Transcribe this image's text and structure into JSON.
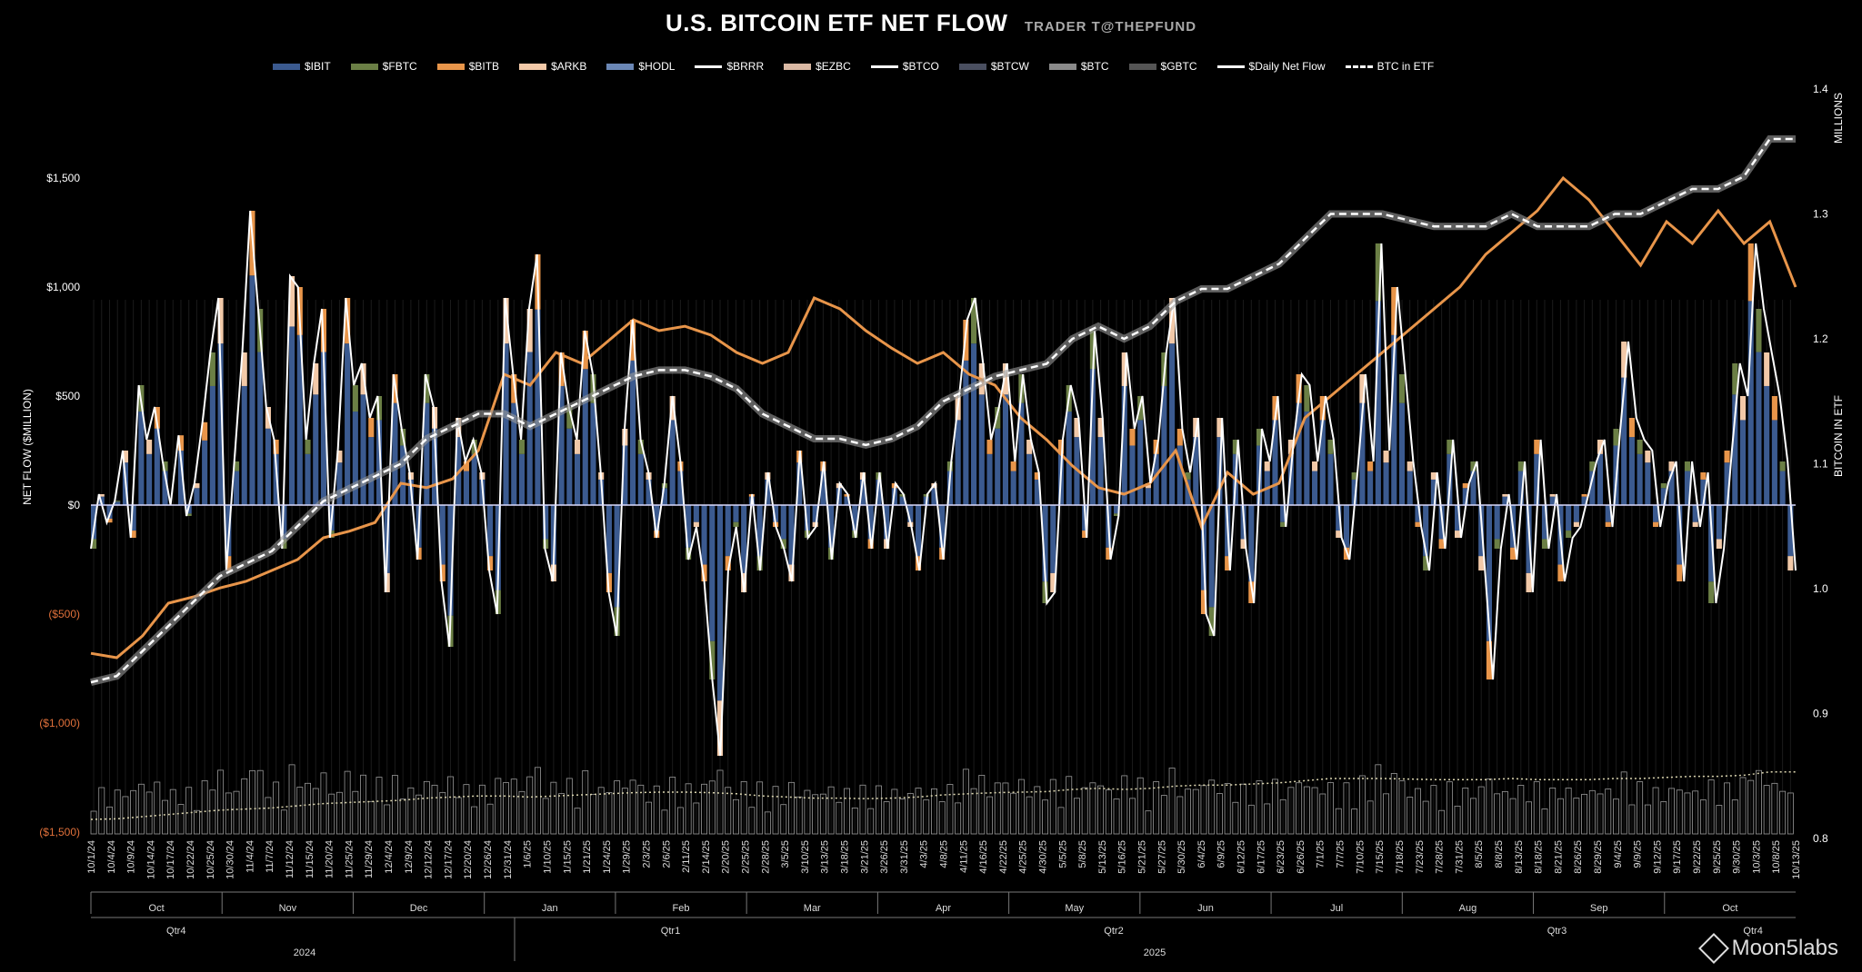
{
  "title": "U.S. BITCOIN ETF NET FLOW",
  "subtitle": "TRADER T@THEPFUND",
  "watermark": "Moon5labs",
  "legend": [
    {
      "label": "$IBIT",
      "color": "#3b5a8f",
      "kind": "bar"
    },
    {
      "label": "$FBTC",
      "color": "#6b7f45",
      "kind": "bar"
    },
    {
      "label": "$BITB",
      "color": "#e8954a",
      "kind": "bar"
    },
    {
      "label": "$ARKB",
      "color": "#f2c9a8",
      "kind": "bar"
    },
    {
      "label": "$HODL",
      "color": "#6b87b5",
      "kind": "bar"
    },
    {
      "label": "$BRRR",
      "color": "#ffffff",
      "kind": "line"
    },
    {
      "label": "$EZBC",
      "color": "#d9b8a3",
      "kind": "bar"
    },
    {
      "label": "$BTCO",
      "color": "#ffffff",
      "kind": "line"
    },
    {
      "label": "$BTCW",
      "color": "#4a4f60",
      "kind": "bar"
    },
    {
      "label": "$BTC",
      "color": "#8a8a8a",
      "kind": "bar"
    },
    {
      "label": "$GBTC",
      "color": "#555555",
      "kind": "bar"
    },
    {
      "label": "$Daily Net Flow",
      "color": "#ffffff",
      "kind": "line"
    },
    {
      "label": "BTC in ETF",
      "color": "#ffffff",
      "kind": "dash"
    }
  ],
  "chart_data": {
    "type": "bar",
    "title": "U.S. BITCOIN ETF NET FLOW",
    "ylabel_left": "NET FLOW ($MILLION)",
    "ylabel_right": "BITCOIN IN ETF",
    "right_unit": "MILLIONS",
    "left_ticks": [
      "$1,500",
      "$1,000",
      "$500",
      "$0",
      "($500)",
      "($1,000)",
      "($1,500)"
    ],
    "left_tick_values": [
      1500,
      1000,
      500,
      0,
      -500,
      -1000,
      -1500
    ],
    "right_ticks": [
      "1.4",
      "1.3",
      "1.2",
      "1.1",
      "1.0",
      "0.9",
      "0.8"
    ],
    "right_tick_values": [
      1.4,
      1.3,
      1.2,
      1.1,
      1.0,
      0.9,
      0.8
    ],
    "ylim_left": [
      -1500,
      1500
    ],
    "ylim_right": [
      0.8,
      1.4
    ],
    "date_labels": [
      "10/1/24",
      "10/4/24",
      "10/9/24",
      "10/14/24",
      "10/17/24",
      "10/22/24",
      "10/25/24",
      "10/30/24",
      "11/4/24",
      "11/7/24",
      "11/12/24",
      "11/15/24",
      "11/20/24",
      "11/25/24",
      "11/29/24",
      "12/4/24",
      "12/9/24",
      "12/12/24",
      "12/17/24",
      "12/20/24",
      "12/26/24",
      "12/31/24",
      "1/6/25",
      "1/10/25",
      "1/15/25",
      "1/21/25",
      "1/24/25",
      "1/29/25",
      "2/3/25",
      "2/6/25",
      "2/11/25",
      "2/14/25",
      "2/20/25",
      "2/25/25",
      "2/28/25",
      "3/5/25",
      "3/10/25",
      "3/13/25",
      "3/18/25",
      "3/21/25",
      "3/26/25",
      "3/31/25",
      "4/3/25",
      "4/8/25",
      "4/11/25",
      "4/16/25",
      "4/22/25",
      "4/25/25",
      "4/30/25",
      "5/5/25",
      "5/8/25",
      "5/13/25",
      "5/16/25",
      "5/21/25",
      "5/27/25",
      "5/30/25",
      "6/4/25",
      "6/9/25",
      "6/12/25",
      "6/17/25",
      "6/23/25",
      "6/26/25",
      "7/1/25",
      "7/7/25",
      "7/10/25",
      "7/15/25",
      "7/18/25",
      "7/23/25",
      "7/28/25",
      "7/31/25",
      "8/5/25",
      "8/8/25",
      "8/13/25",
      "8/18/25",
      "8/21/25",
      "8/26/25",
      "8/29/25",
      "9/4/25",
      "9/9/25",
      "9/12/25",
      "9/17/25",
      "9/22/25",
      "9/25/25",
      "9/30/25",
      "10/3/25",
      "10/8/25",
      "10/13/25"
    ],
    "months": [
      "Oct",
      "Nov",
      "Dec",
      "Jan",
      "Feb",
      "Mar",
      "Apr",
      "May",
      "Jun",
      "Jul",
      "Aug",
      "Sep",
      "Oct"
    ],
    "quarters": [
      "Qtr4",
      "Qtr1",
      "Qtr2",
      "Qtr3",
      "Qtr4"
    ],
    "years": [
      "2024",
      "2025"
    ],
    "daily_net_flow": [
      -200,
      50,
      -80,
      20,
      250,
      -150,
      550,
      300,
      450,
      200,
      0,
      320,
      -50,
      100,
      380,
      700,
      950,
      -300,
      200,
      700,
      1350,
      900,
      450,
      300,
      -200,
      1050,
      1000,
      300,
      650,
      900,
      -150,
      250,
      950,
      550,
      650,
      400,
      500,
      -400,
      600,
      350,
      150,
      -250,
      600,
      450,
      -350,
      -650,
      400,
      200,
      300,
      150,
      -300,
      -500,
      950,
      600,
      300,
      900,
      1150,
      -200,
      -350,
      700,
      450,
      300,
      800,
      600,
      150,
      -400,
      -600,
      350,
      850,
      300,
      150,
      -150,
      100,
      500,
      200,
      -250,
      -100,
      -350,
      -800,
      -1150,
      -300,
      -100,
      -400,
      50,
      -300,
      150,
      -100,
      -200,
      -350,
      250,
      -150,
      -100,
      200,
      -250,
      100,
      50,
      -150,
      150,
      -200,
      150,
      -200,
      100,
      50,
      -100,
      -300,
      50,
      100,
      -250,
      200,
      500,
      850,
      950,
      650,
      300,
      450,
      650,
      200,
      600,
      300,
      150,
      -450,
      -400,
      300,
      550,
      400,
      -150,
      800,
      400,
      -250,
      -50,
      700,
      350,
      500,
      100,
      300,
      700,
      950,
      350,
      150,
      400,
      -500,
      -600,
      400,
      -300,
      300,
      -200,
      -450,
      350,
      200,
      500,
      -100,
      300,
      600,
      550,
      200,
      500,
      300,
      -150,
      -250,
      150,
      600,
      200,
      1200,
      250,
      1000,
      600,
      200,
      -100,
      -300,
      150,
      -200,
      300,
      -150,
      100,
      200,
      -300,
      -800,
      -200,
      50,
      -250,
      200,
      -400,
      300,
      -200,
      50,
      -350,
      -150,
      -100,
      50,
      200,
      300,
      -100,
      350,
      750,
      400,
      300,
      250,
      -100,
      100,
      200,
      -350,
      200,
      -100,
      150,
      -450,
      -200,
      250,
      650,
      500,
      1200,
      900,
      700,
      500,
      200,
      -300
    ],
    "btc_in_etf": [
      0.925,
      0.93,
      0.95,
      0.97,
      0.99,
      1.01,
      1.02,
      1.03,
      1.05,
      1.07,
      1.08,
      1.09,
      1.1,
      1.12,
      1.13,
      1.14,
      1.14,
      1.13,
      1.14,
      1.15,
      1.16,
      1.17,
      1.175,
      1.175,
      1.17,
      1.16,
      1.14,
      1.13,
      1.12,
      1.12,
      1.115,
      1.12,
      1.13,
      1.15,
      1.16,
      1.17,
      1.175,
      1.18,
      1.2,
      1.21,
      1.2,
      1.21,
      1.23,
      1.24,
      1.24,
      1.25,
      1.26,
      1.28,
      1.3,
      1.3,
      1.3,
      1.295,
      1.29,
      1.29,
      1.29,
      1.3,
      1.29,
      1.29,
      1.29,
      1.3,
      1.3,
      1.31,
      1.32,
      1.32,
      1.33,
      1.36,
      1.36
    ],
    "btc_price": [
      -680,
      -700,
      -600,
      -450,
      -420,
      -380,
      -350,
      -300,
      -250,
      -150,
      -120,
      -80,
      100,
      80,
      120,
      250,
      600,
      550,
      700,
      650,
      750,
      850,
      800,
      820,
      780,
      700,
      650,
      700,
      950,
      900,
      800,
      720,
      650,
      700,
      600,
      550,
      400,
      300,
      180,
      80,
      50,
      100,
      250,
      -100,
      150,
      50,
      100,
      400,
      500,
      600,
      700,
      800,
      900,
      1000,
      1150,
      1250,
      1350,
      1500,
      1400,
      1250,
      1100,
      1300,
      1200,
      1350,
      1200,
      1300,
      1000
    ]
  }
}
